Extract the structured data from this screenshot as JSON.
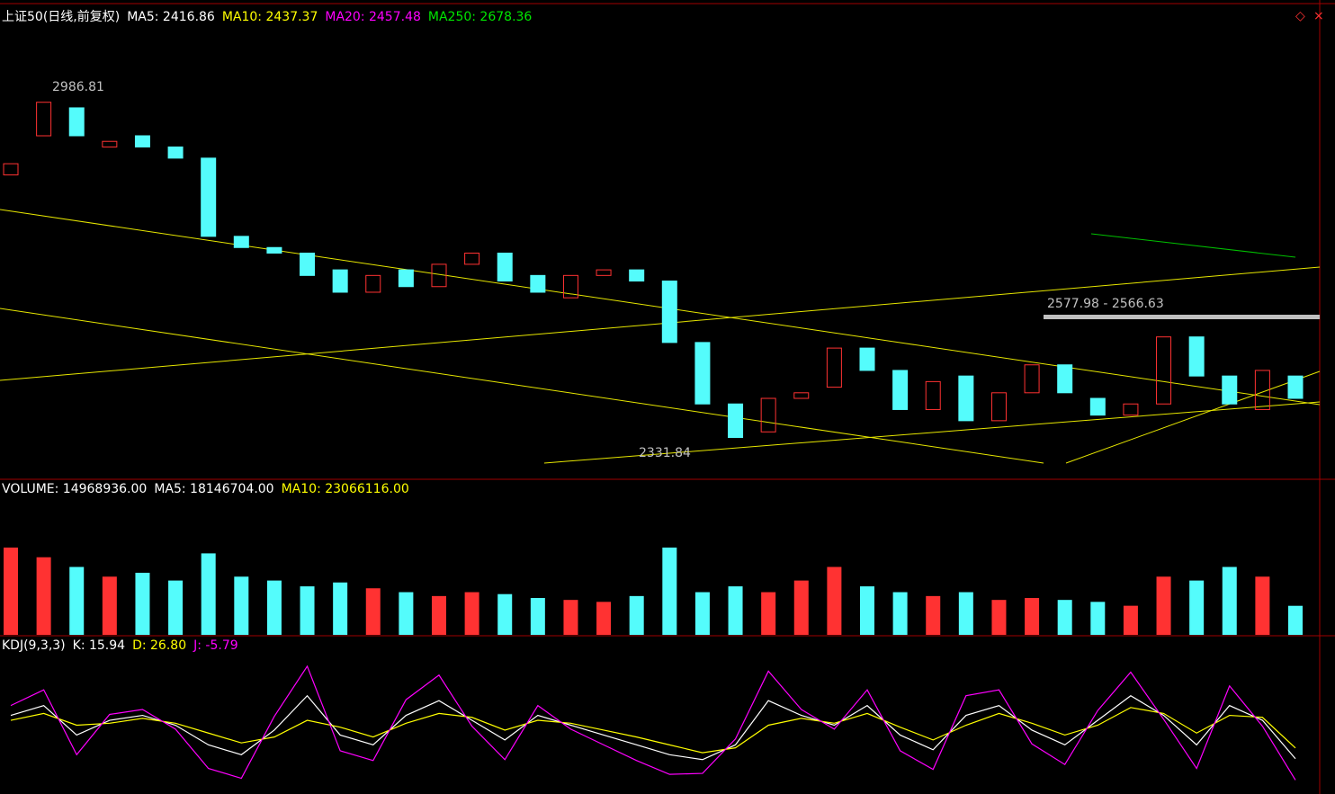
{
  "header": {
    "title": "上证50(日线,前复权)",
    "price_items": [
      {
        "text": "MA5: 2416.86",
        "color": "#ffffff"
      },
      {
        "text": "MA10: 2437.37",
        "color": "#ffff00"
      },
      {
        "text": "MA20: 2457.48",
        "color": "#ff00ff"
      },
      {
        "text": "MA250: 2678.36",
        "color": "#00e600"
      }
    ],
    "volume_items": [
      {
        "text": "VOLUME: 14968936.00",
        "color": "#ffffff"
      },
      {
        "text": "MA5: 18146704.00",
        "color": "#ffffff"
      },
      {
        "text": "MA10: 23066116.00",
        "color": "#ffff00"
      }
    ],
    "kdj_items": [
      {
        "text": "KDJ(9,3,3)",
        "color": "#ffffff"
      },
      {
        "text": "K: 15.94",
        "color": "#ffffff"
      },
      {
        "text": "D: 26.80",
        "color": "#ffff00"
      },
      {
        "text": "J: -5.79",
        "color": "#ff00ff"
      }
    ]
  },
  "chart_data": [
    {
      "type": "candlestick",
      "ylim": [
        2290,
        3135
      ],
      "up_color": "#ff3232",
      "down_color": "#54fcfc",
      "open": [
        2830,
        2900,
        2950,
        2880,
        2900,
        2880,
        2860,
        2720,
        2700,
        2690,
        2660,
        2620,
        2660,
        2630,
        2670,
        2690,
        2650,
        2610,
        2650,
        2660,
        2640,
        2530,
        2420,
        2370,
        2430,
        2450,
        2520,
        2480,
        2410,
        2470,
        2390,
        2440,
        2490,
        2430,
        2400,
        2420,
        2540,
        2470,
        2410,
        2470
      ],
      "close": [
        2850,
        2960,
        2900,
        2890,
        2880,
        2860,
        2720,
        2700,
        2690,
        2650,
        2620,
        2650,
        2630,
        2670,
        2690,
        2640,
        2620,
        2650,
        2660,
        2640,
        2530,
        2420,
        2360,
        2430,
        2440,
        2520,
        2480,
        2410,
        2460,
        2390,
        2440,
        2490,
        2440,
        2400,
        2420,
        2540,
        2470,
        2420,
        2480,
        2430
      ],
      "annotations": [
        2986.81,
        2331.84,
        "2577.98 - 2566.63"
      ]
    },
    {
      "type": "bar",
      "ylim": [
        0,
        70000000
      ],
      "values": [
        45000000,
        40000000,
        35000000,
        30000000,
        32000000,
        28000000,
        42000000,
        30000000,
        28000000,
        25000000,
        27000000,
        24000000,
        22000000,
        20000000,
        22000000,
        21000000,
        19000000,
        18000000,
        17000000,
        20000000,
        45000000,
        22000000,
        25000000,
        22000000,
        28000000,
        35000000,
        25000000,
        22000000,
        20000000,
        22000000,
        18000000,
        19000000,
        18000000,
        17000000,
        15000000,
        30000000,
        28000000,
        35000000,
        30000000,
        14968936
      ]
    },
    {
      "type": "line",
      "ylim": [
        -20,
        120
      ],
      "series": [
        {
          "color": "#ffffff",
          "values": [
            60,
            70,
            40,
            55,
            60,
            50,
            30,
            20,
            45,
            80,
            40,
            30,
            60,
            75,
            55,
            35,
            60,
            50,
            40,
            30,
            20,
            15,
            30,
            75,
            60,
            50,
            70,
            40,
            25,
            60,
            70,
            45,
            30,
            55,
            80,
            60,
            30,
            70,
            55,
            15.94
          ]
        },
        {
          "color": "#ffff00",
          "values": [
            55,
            62,
            50,
            52,
            57,
            52,
            42,
            32,
            38,
            55,
            48,
            38,
            52,
            62,
            58,
            45,
            55,
            52,
            45,
            38,
            30,
            22,
            27,
            50,
            57,
            52,
            62,
            48,
            35,
            50,
            62,
            52,
            40,
            50,
            68,
            62,
            42,
            60,
            58,
            26.8
          ]
        },
        {
          "color": "#ff00ff",
          "values": [
            70,
            86,
            20,
            61,
            66,
            46,
            6,
            -4,
            59,
            110,
            24,
            14,
            76,
            101,
            49,
            15,
            70,
            46,
            30,
            14,
            0,
            1,
            36,
            105,
            66,
            46,
            86,
            24,
            5,
            80,
            86,
            31,
            10,
            65,
            104,
            56,
            6,
            90,
            49,
            -5.79
          ]
        }
      ]
    }
  ]
}
